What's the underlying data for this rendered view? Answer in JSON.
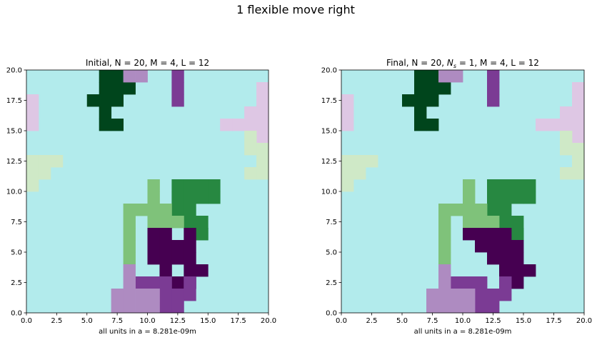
{
  "suptitle": "1 flexible move right",
  "colors": {
    "background": "#b2ebec",
    "pink": "#dec7e4",
    "lavender": "#ae8bc1",
    "purple": "#7b3b94",
    "darkpurple": "#460051",
    "lightgreen": "#cfe9c7",
    "medgreen": "#7fc27a",
    "green": "#278841",
    "darkgreen": "#00451c"
  },
  "chart_data": [
    {
      "type": "heatmap",
      "title": "Initial, N = 20, M = 4, L = 12",
      "xlabel": "all units in a = 8.281e-09m",
      "ylabel": "",
      "xlim": [
        0,
        20
      ],
      "ylim": [
        0,
        20
      ],
      "xticks": [
        "0.0",
        "2.5",
        "5.0",
        "7.5",
        "10.0",
        "12.5",
        "15.0",
        "17.5",
        "20.0"
      ],
      "yticks": [
        "0.0",
        "2.5",
        "5.0",
        "7.5",
        "10.0",
        "12.5",
        "15.0",
        "17.5",
        "20.0"
      ],
      "grid": false,
      "cells": [
        {
          "color": "darkgreen",
          "x": [
            6,
            7,
            6,
            7,
            8,
            5,
            6,
            7,
            6,
            6,
            7
          ],
          "y": [
            19,
            19,
            18,
            18,
            18,
            17,
            17,
            17,
            16,
            15,
            15
          ]
        },
        {
          "color": "lavender",
          "x": [
            8,
            9
          ],
          "y": [
            19,
            19
          ]
        },
        {
          "color": "purple",
          "x": [
            12,
            12,
            12
          ],
          "y": [
            19,
            18,
            17
          ]
        },
        {
          "color": "pink",
          "x": [
            0,
            0,
            0,
            19,
            19,
            18,
            19,
            18,
            19,
            16,
            17,
            18,
            19,
            19
          ],
          "y": [
            17,
            16,
            15,
            18,
            17,
            16,
            16,
            15,
            15,
            15,
            15,
            15,
            15,
            14
          ]
        },
        {
          "color": "lightgreen",
          "x": [
            18,
            18,
            19,
            19,
            0,
            1,
            2,
            0,
            1,
            18,
            19,
            0
          ],
          "y": [
            14,
            13,
            13,
            12,
            12,
            12,
            12,
            11,
            11,
            11,
            11,
            10
          ]
        },
        {
          "color": "green",
          "x": [
            12,
            13,
            14,
            15,
            12,
            13,
            14,
            15,
            12,
            13,
            13,
            14,
            14,
            14
          ],
          "y": [
            10,
            10,
            10,
            10,
            9,
            9,
            9,
            9,
            8,
            8,
            7,
            7,
            6,
            6
          ]
        },
        {
          "color": "medgreen",
          "x": [
            10,
            10,
            8,
            9,
            10,
            11,
            8,
            10,
            11,
            12,
            8,
            8,
            8
          ],
          "y": [
            10,
            9,
            8,
            8,
            8,
            8,
            7,
            7,
            7,
            7,
            6,
            5,
            4
          ]
        },
        {
          "color": "darkpurple",
          "x": [
            10,
            11,
            13,
            10,
            11,
            12,
            13,
            10,
            11,
            12,
            13,
            11,
            13,
            14,
            12,
            13
          ],
          "y": [
            6,
            6,
            6,
            5,
            5,
            5,
            5,
            4,
            4,
            4,
            4,
            3,
            3,
            3,
            2,
            2
          ]
        },
        {
          "color": "purple",
          "x": [
            13,
            9,
            10,
            11,
            13,
            11,
            12,
            13,
            11,
            12
          ],
          "y": [
            2,
            2,
            2,
            2,
            2,
            1,
            1,
            1,
            0,
            0
          ]
        },
        {
          "color": "lavender",
          "x": [
            8,
            8,
            7,
            8,
            9,
            10,
            7,
            8,
            9,
            10
          ],
          "y": [
            3,
            2,
            1,
            1,
            1,
            1,
            0,
            0,
            0,
            0
          ]
        }
      ]
    },
    {
      "type": "heatmap",
      "title": "Final, N = 20, N_s = 1, M = 4, L = 12",
      "xlabel": "all units in a = 8.281e-09m",
      "ylabel": "",
      "xlim": [
        0,
        20
      ],
      "ylim": [
        0,
        20
      ],
      "xticks": [
        "0.0",
        "2.5",
        "5.0",
        "7.5",
        "10.0",
        "12.5",
        "15.0",
        "17.5",
        "20.0"
      ],
      "yticks": [
        "0.0",
        "2.5",
        "5.0",
        "7.5",
        "10.0",
        "12.5",
        "15.0",
        "17.5",
        "20.0"
      ],
      "grid": false,
      "cells": [
        {
          "color": "darkgreen",
          "x": [
            6,
            7,
            6,
            7,
            8,
            5,
            6,
            7,
            6,
            6,
            7
          ],
          "y": [
            19,
            19,
            18,
            18,
            18,
            17,
            17,
            17,
            16,
            15,
            15
          ]
        },
        {
          "color": "lavender",
          "x": [
            8,
            9
          ],
          "y": [
            19,
            19
          ]
        },
        {
          "color": "purple",
          "x": [
            12,
            12,
            12
          ],
          "y": [
            19,
            18,
            17
          ]
        },
        {
          "color": "pink",
          "x": [
            0,
            0,
            0,
            19,
            19,
            18,
            19,
            18,
            19,
            16,
            17,
            18,
            19,
            19
          ],
          "y": [
            17,
            16,
            15,
            18,
            17,
            16,
            16,
            15,
            15,
            15,
            15,
            15,
            15,
            14
          ]
        },
        {
          "color": "lightgreen",
          "x": [
            18,
            18,
            19,
            19,
            0,
            1,
            2,
            0,
            1,
            18,
            19,
            0
          ],
          "y": [
            14,
            13,
            13,
            12,
            12,
            12,
            12,
            11,
            11,
            11,
            11,
            10
          ]
        },
        {
          "color": "green",
          "x": [
            12,
            13,
            14,
            15,
            12,
            13,
            14,
            15,
            12,
            13,
            13,
            14,
            14,
            14
          ],
          "y": [
            10,
            10,
            10,
            10,
            9,
            9,
            9,
            9,
            8,
            8,
            7,
            7,
            6,
            6
          ]
        },
        {
          "color": "medgreen",
          "x": [
            10,
            10,
            8,
            9,
            10,
            11,
            8,
            10,
            11,
            12,
            8,
            8,
            8
          ],
          "y": [
            10,
            9,
            8,
            8,
            8,
            8,
            7,
            7,
            7,
            7,
            6,
            5,
            4
          ]
        },
        {
          "color": "darkpurple",
          "x": [
            10,
            11,
            12,
            13,
            11,
            12,
            13,
            14,
            12,
            13,
            14,
            13,
            14,
            15,
            13,
            14
          ],
          "y": [
            6,
            6,
            6,
            6,
            5,
            5,
            5,
            5,
            4,
            4,
            4,
            3,
            3,
            3,
            2,
            2
          ]
        },
        {
          "color": "purple",
          "x": [
            13,
            9,
            10,
            11,
            13,
            11,
            12,
            13,
            11,
            12
          ],
          "y": [
            2,
            2,
            2,
            2,
            2,
            1,
            1,
            1,
            0,
            0
          ]
        },
        {
          "color": "lavender",
          "x": [
            8,
            8,
            7,
            8,
            9,
            10,
            7,
            8,
            9,
            10
          ],
          "y": [
            3,
            2,
            1,
            1,
            1,
            1,
            0,
            0,
            0,
            0
          ]
        }
      ]
    }
  ]
}
